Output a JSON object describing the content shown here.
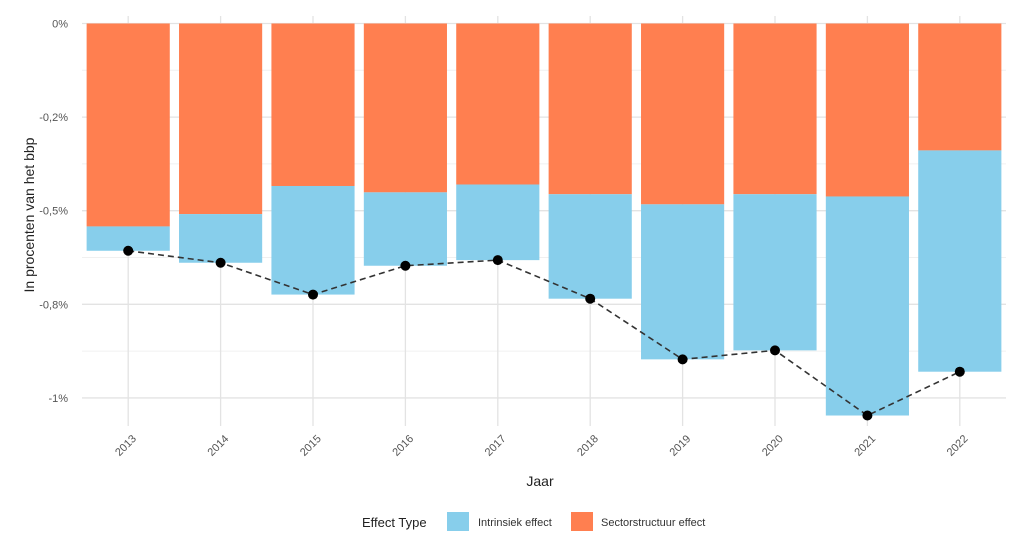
{
  "chart_data": {
    "type": "bar",
    "stacked": true,
    "xlabel": "Jaar",
    "ylabel": "In procenten van het bbp",
    "categories": [
      "2013",
      "2014",
      "2015",
      "2016",
      "2017",
      "2018",
      "2019",
      "2020",
      "2021",
      "2022"
    ],
    "series": [
      {
        "name": "Intrinsiek effect",
        "color": "#87CEEB",
        "values": [
          -0.065,
          -0.13,
          -0.29,
          -0.196,
          -0.202,
          -0.279,
          -0.414,
          -0.417,
          -0.585,
          -0.591
        ]
      },
      {
        "name": "Sectorstructuur effect",
        "color": "#FF7F50",
        "values": [
          -0.542,
          -0.509,
          -0.434,
          -0.451,
          -0.43,
          -0.456,
          -0.483,
          -0.456,
          -0.462,
          -0.339
        ]
      }
    ],
    "total_line": {
      "style": "dashed",
      "color": "#333333",
      "values": [
        -0.607,
        -0.639,
        -0.724,
        -0.647,
        -0.632,
        -0.735,
        -0.897,
        -0.873,
        -1.047,
        -0.93
      ]
    },
    "y_ticks": [
      {
        "value": 0,
        "label": "0%"
      },
      {
        "value": -0.25,
        "label": "-0,2%"
      },
      {
        "value": -0.5,
        "label": "-0,5%"
      },
      {
        "value": -0.75,
        "label": "-0,8%"
      },
      {
        "value": -1.0,
        "label": "-1%"
      }
    ],
    "ylim": [
      -1.075,
      0.02
    ],
    "grid": true,
    "legend": {
      "title": "Effect Type",
      "position": "bottom",
      "entries": [
        "Intrinsiek effect",
        "Sectorstructuur effect"
      ]
    }
  }
}
